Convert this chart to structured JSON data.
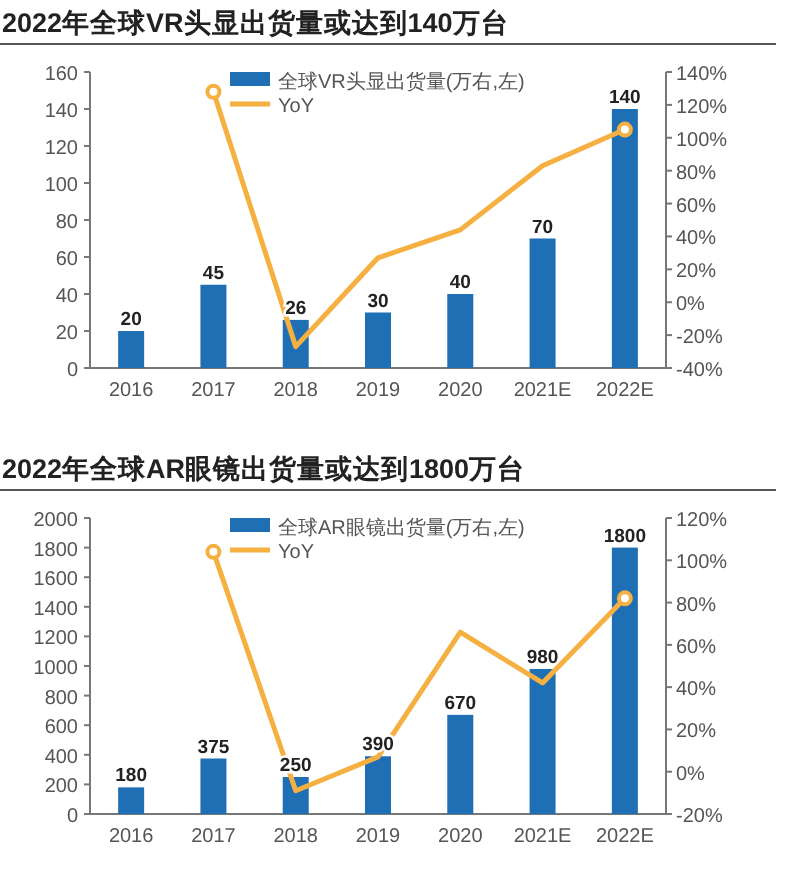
{
  "chart_data": [
    {
      "type": "bar",
      "title": "2022年全球VR头显出货量或达到140万台",
      "categories": [
        "2016",
        "2017",
        "2018",
        "2019",
        "2020",
        "2021E",
        "2022E"
      ],
      "series": [
        {
          "name": "全球VR头显出货量(万右,左)",
          "color": "#1f6fb5",
          "values": [
            20,
            45,
            26,
            30,
            40,
            70,
            140
          ],
          "value_labels": [
            "20",
            "45",
            "26",
            "30",
            "40",
            "70",
            "140"
          ]
        },
        {
          "name": "YoY",
          "type": "line",
          "axis": "y2",
          "color": "#f5b041",
          "values": [
            null,
            128,
            -27,
            27,
            44,
            83,
            105
          ]
        }
      ],
      "ylim": [
        0,
        160
      ],
      "yticks": [
        0,
        20,
        40,
        60,
        80,
        100,
        120,
        140,
        160
      ],
      "y2lim": [
        -40,
        140
      ],
      "y2ticks": [
        {
          "value": -40,
          "label": "-40%"
        },
        {
          "value": -20,
          "label": "-20%"
        },
        {
          "value": 0,
          "label": "0%"
        },
        {
          "value": 20,
          "label": "20%"
        },
        {
          "value": 40,
          "label": "40%"
        },
        {
          "value": 60,
          "label": "60%"
        },
        {
          "value": 80,
          "label": "80%"
        },
        {
          "value": 100,
          "label": "100%"
        },
        {
          "value": 120,
          "label": "120%"
        },
        {
          "value": 140,
          "label": "140%"
        }
      ],
      "legend": "top",
      "grid": false
    },
    {
      "type": "bar",
      "title": "2022年全球AR眼镜出货量或达到1800万台",
      "categories": [
        "2016",
        "2017",
        "2018",
        "2019",
        "2020",
        "2021E",
        "2022E"
      ],
      "series": [
        {
          "name": "全球AR眼镜出货量(万右,左)",
          "color": "#1f6fb5",
          "values": [
            180,
            375,
            250,
            390,
            670,
            980,
            1800
          ],
          "value_labels": [
            "180",
            "375",
            "250",
            "390",
            "670",
            "980",
            "1800"
          ]
        },
        {
          "name": "YoY",
          "type": "line",
          "axis": "y2",
          "color": "#f5b041",
          "values": [
            null,
            104,
            -9,
            7,
            66,
            42,
            82
          ]
        }
      ],
      "ylim": [
        0,
        2000
      ],
      "yticks": [
        0,
        200,
        400,
        600,
        800,
        1000,
        1200,
        1400,
        1600,
        1800,
        2000
      ],
      "y2lim": [
        -20,
        120
      ],
      "y2ticks": [
        {
          "value": -20,
          "label": "-20%"
        },
        {
          "value": 0,
          "label": "0%"
        },
        {
          "value": 20,
          "label": "20%"
        },
        {
          "value": 40,
          "label": "40%"
        },
        {
          "value": 60,
          "label": "60%"
        },
        {
          "value": 80,
          "label": "80%"
        },
        {
          "value": 100,
          "label": "100%"
        },
        {
          "value": 120,
          "label": "120%"
        }
      ],
      "legend": "top",
      "grid": false
    }
  ]
}
